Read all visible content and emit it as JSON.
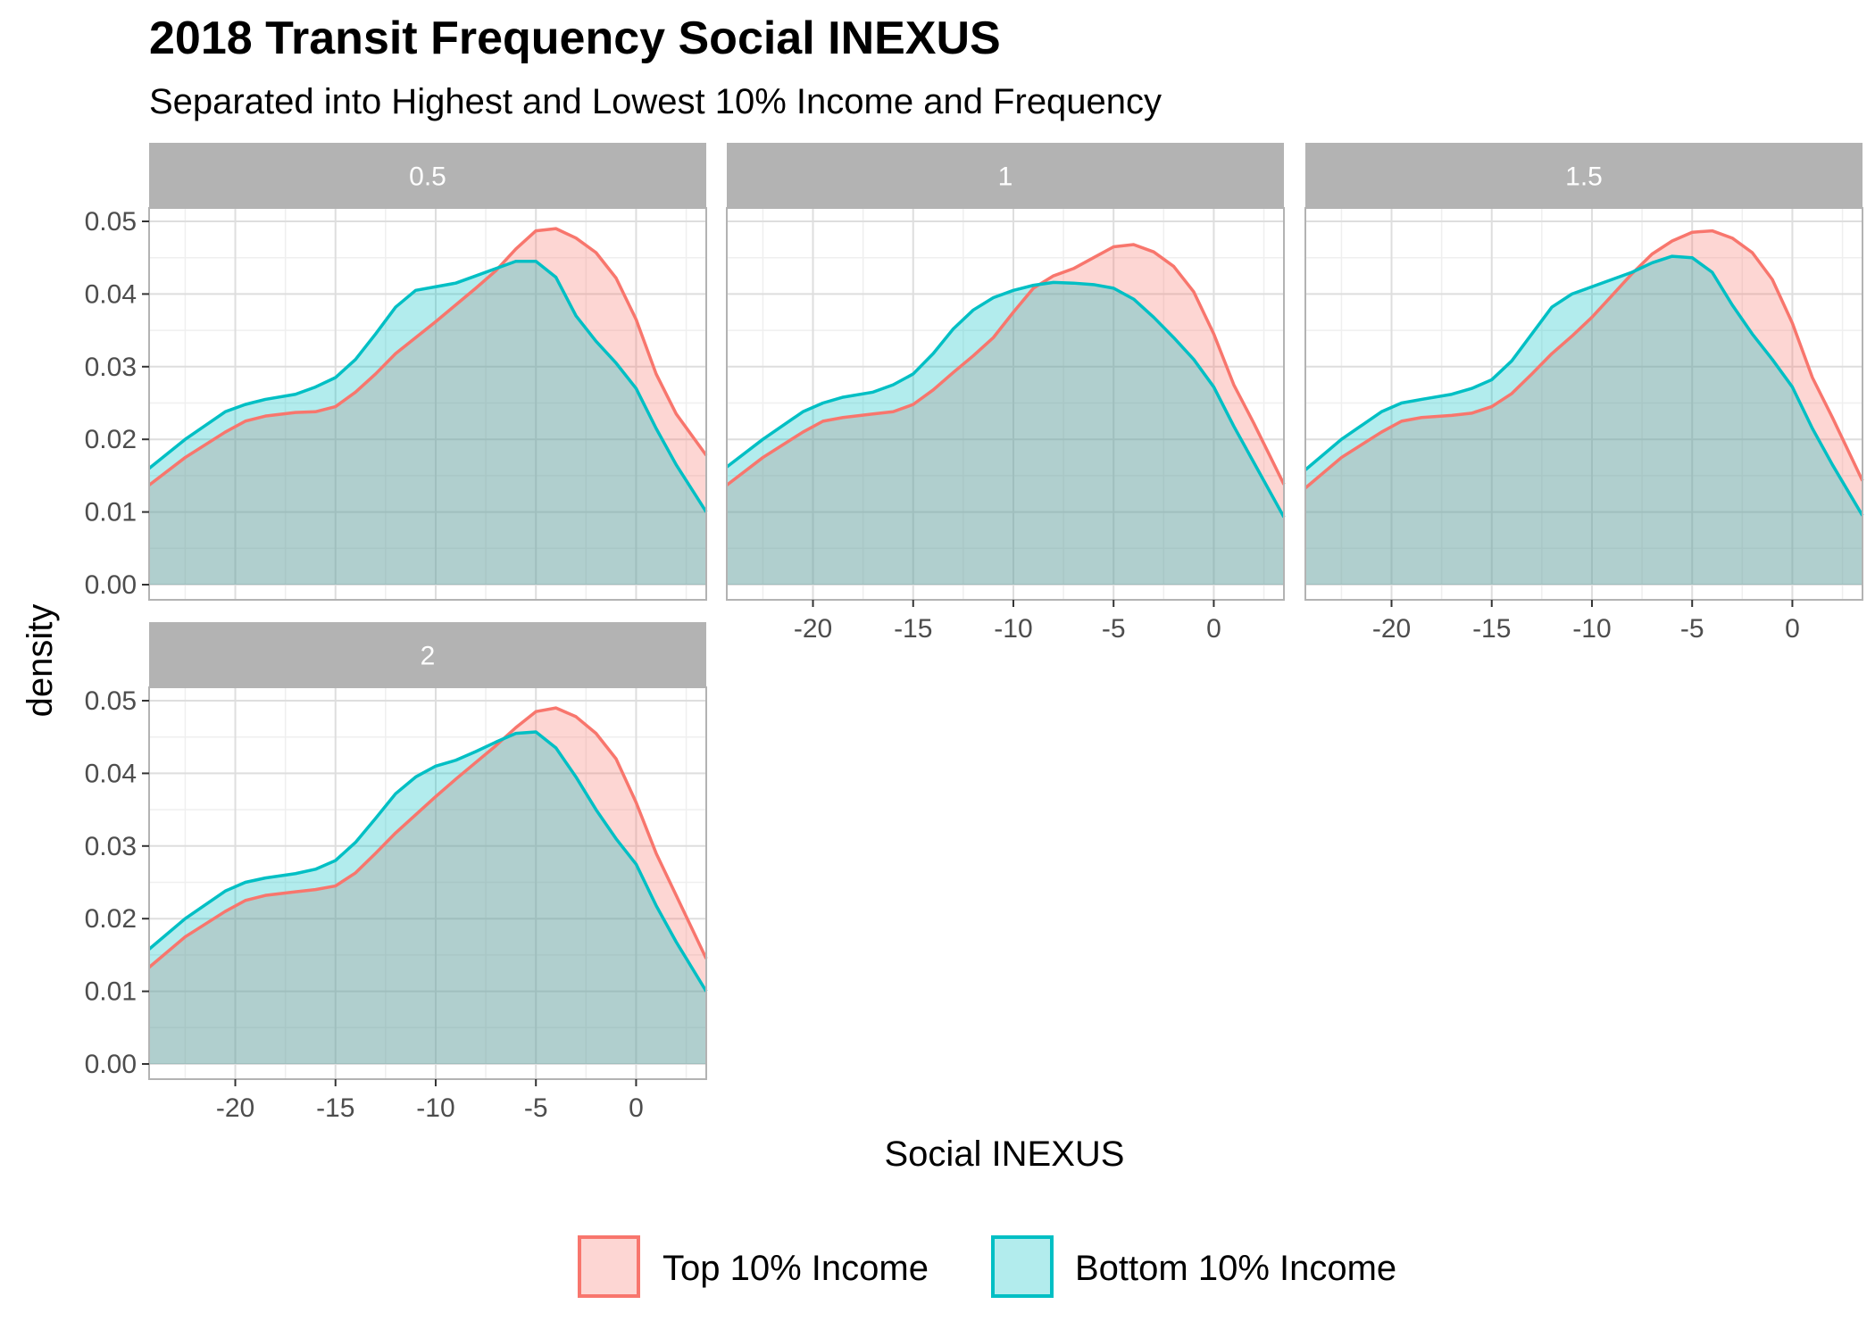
{
  "chart_data": {
    "type": "area",
    "subtype": "faceted density",
    "title": "2018 Transit Frequency Social INEXUS",
    "subtitle": "Separated into Highest and Lowest 10% Income and Frequency",
    "xlabel": "Social INEXUS",
    "ylabel": "density",
    "xlim": [
      -24.3,
      3.5
    ],
    "ylim": [
      0,
      0.05
    ],
    "x_ticks": [
      -20,
      -15,
      -10,
      -5,
      0
    ],
    "x_tick_labels": [
      "-20",
      "-15",
      "-10",
      "-5",
      "0"
    ],
    "y_ticks": [
      0,
      0.01,
      0.02,
      0.03,
      0.04,
      0.05
    ],
    "y_tick_labels": [
      "0.00",
      "0.01",
      "0.02",
      "0.03",
      "0.04",
      "0.05"
    ],
    "grid": true,
    "legend_position": "bottom",
    "x": [
      -24.3,
      -22.5,
      -20.5,
      -19.5,
      -18.5,
      -17,
      -16,
      -15,
      -14,
      -13,
      -12,
      -11,
      -10,
      -9,
      -8,
      -7,
      -6,
      -5,
      -4,
      -3,
      -2,
      -1,
      0,
      1,
      2,
      3.5
    ],
    "facets": [
      {
        "label": "0.5",
        "series": [
          {
            "name": "Top 10% Income",
            "values": [
              0.0137,
              0.0175,
              0.021,
              0.0225,
              0.0232,
              0.0237,
              0.0238,
              0.0245,
              0.0265,
              0.029,
              0.0318,
              0.034,
              0.0362,
              0.0385,
              0.0408,
              0.0432,
              0.0462,
              0.0487,
              0.049,
              0.0477,
              0.0457,
              0.0422,
              0.0365,
              0.029,
              0.0235,
              0.0178
            ]
          },
          {
            "name": "Bottom 10% Income",
            "values": [
              0.016,
              0.02,
              0.0238,
              0.0248,
              0.0255,
              0.0262,
              0.0272,
              0.0285,
              0.031,
              0.0345,
              0.0382,
              0.0405,
              0.041,
              0.0415,
              0.0425,
              0.0435,
              0.0445,
              0.0445,
              0.0423,
              0.037,
              0.0335,
              0.0305,
              0.027,
              0.0215,
              0.0165,
              0.01
            ]
          }
        ]
      },
      {
        "label": "1",
        "series": [
          {
            "name": "Top 10% Income",
            "values": [
              0.0137,
              0.0175,
              0.021,
              0.0225,
              0.023,
              0.0235,
              0.0238,
              0.0248,
              0.0268,
              0.0292,
              0.0315,
              0.034,
              0.0375,
              0.0408,
              0.0425,
              0.0435,
              0.045,
              0.0465,
              0.0468,
              0.0458,
              0.0438,
              0.0403,
              0.0345,
              0.0275,
              0.0222,
              0.0138
            ]
          },
          {
            "name": "Bottom 10% Income",
            "values": [
              0.0162,
              0.02,
              0.0238,
              0.025,
              0.0258,
              0.0265,
              0.0275,
              0.029,
              0.0318,
              0.0352,
              0.0378,
              0.0395,
              0.0405,
              0.0412,
              0.0416,
              0.0415,
              0.0413,
              0.0408,
              0.0393,
              0.0368,
              0.034,
              0.031,
              0.0272,
              0.0218,
              0.0168,
              0.0093
            ]
          }
        ]
      },
      {
        "label": "1.5",
        "series": [
          {
            "name": "Top 10% Income",
            "values": [
              0.0133,
              0.0175,
              0.021,
              0.0225,
              0.023,
              0.0233,
              0.0236,
              0.0245,
              0.0263,
              0.029,
              0.0318,
              0.0342,
              0.0368,
              0.0398,
              0.0428,
              0.0455,
              0.0473,
              0.0485,
              0.0487,
              0.0477,
              0.0457,
              0.042,
              0.036,
              0.0285,
              0.023,
              0.0143
            ]
          },
          {
            "name": "Bottom 10% Income",
            "values": [
              0.0158,
              0.02,
              0.0238,
              0.025,
              0.0255,
              0.0262,
              0.027,
              0.0282,
              0.0308,
              0.0345,
              0.0382,
              0.04,
              0.041,
              0.042,
              0.043,
              0.0443,
              0.0452,
              0.045,
              0.043,
              0.0385,
              0.0345,
              0.031,
              0.0272,
              0.0215,
              0.0165,
              0.0095
            ]
          }
        ]
      },
      {
        "label": "2",
        "series": [
          {
            "name": "Top 10% Income",
            "values": [
              0.0133,
              0.0175,
              0.021,
              0.0225,
              0.0232,
              0.0237,
              0.024,
              0.0245,
              0.0263,
              0.029,
              0.0318,
              0.0343,
              0.0368,
              0.0392,
              0.0415,
              0.0438,
              0.0463,
              0.0485,
              0.049,
              0.0478,
              0.0455,
              0.042,
              0.036,
              0.029,
              0.0232,
              0.0145
            ]
          },
          {
            "name": "Bottom 10% Income",
            "values": [
              0.0158,
              0.02,
              0.0238,
              0.025,
              0.0256,
              0.0262,
              0.0268,
              0.028,
              0.0305,
              0.0338,
              0.0372,
              0.0395,
              0.041,
              0.0418,
              0.043,
              0.0443,
              0.0455,
              0.0457,
              0.0435,
              0.0395,
              0.035,
              0.031,
              0.0275,
              0.0218,
              0.0168,
              0.01
            ]
          }
        ]
      }
    ],
    "series_names": [
      "Top 10% Income",
      "Bottom 10% Income"
    ],
    "colors": {
      "top_line": "#F8766D",
      "top_fill": "#F8766D",
      "bottom_line": "#00BFC4",
      "bottom_fill": "#00BFC4",
      "strip_bg": "#B3B3B3",
      "grid_major": "#DEDEDE",
      "grid_minor": "#EFEFEF",
      "panel_border": "#B3B3B3"
    }
  }
}
